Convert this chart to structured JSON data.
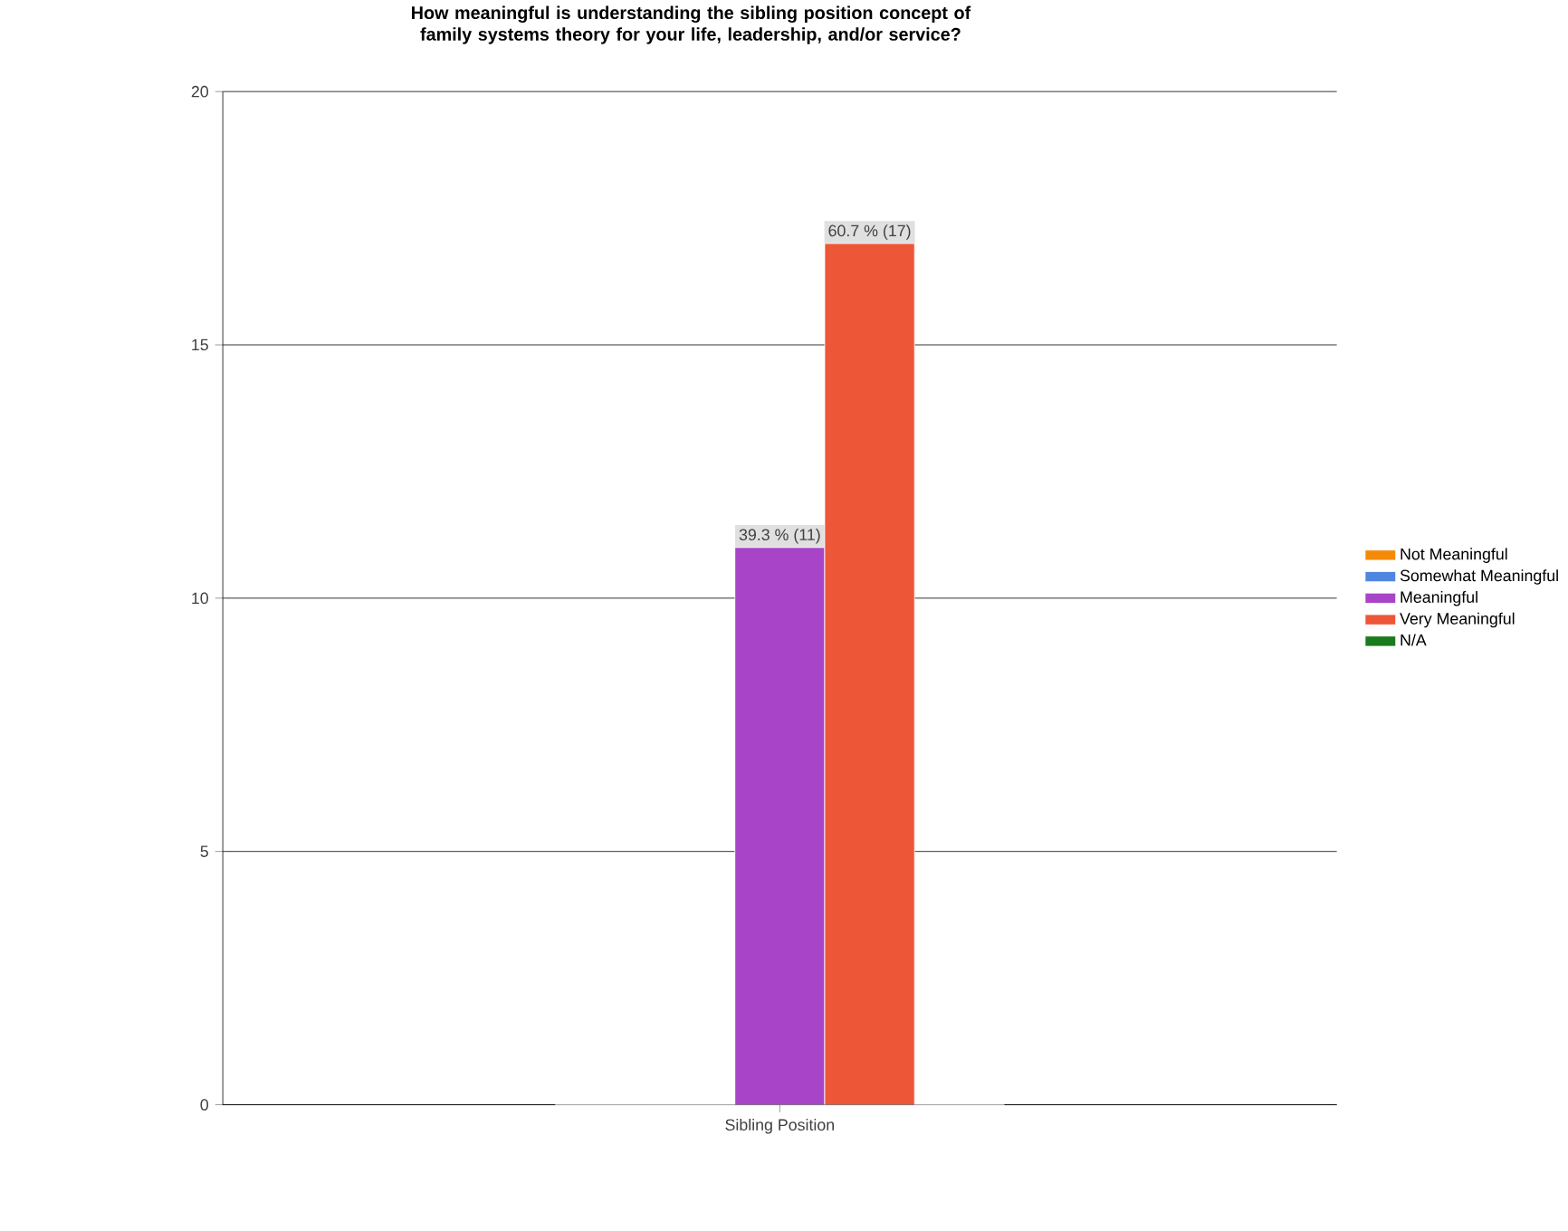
{
  "chart_data": {
    "type": "bar",
    "title": "How meaningful is understanding the sibling position concept of family systems theory for your life, leadership, and/or service?",
    "categories": [
      "Sibling Position"
    ],
    "series": [
      {
        "name": "Not Meaningful",
        "color": "#f58a0a",
        "values": [
          0
        ]
      },
      {
        "name": "Somewhat Meaningful",
        "color": "#4f86e0",
        "values": [
          0
        ]
      },
      {
        "name": "Meaningful",
        "color": "#a844c8",
        "values": [
          11
        ],
        "value_labels": [
          "39.3 % (11)"
        ]
      },
      {
        "name": "Very Meaningful",
        "color": "#ee5638",
        "values": [
          17
        ],
        "value_labels": [
          "60.7 % (17)"
        ]
      },
      {
        "name": "N/A",
        "color": "#1b7a1b",
        "values": [
          0
        ]
      }
    ],
    "ylim": [
      0,
      20
    ],
    "yticks": [
      0,
      5,
      10,
      15,
      20
    ],
    "grid": "y",
    "legend": "right"
  }
}
